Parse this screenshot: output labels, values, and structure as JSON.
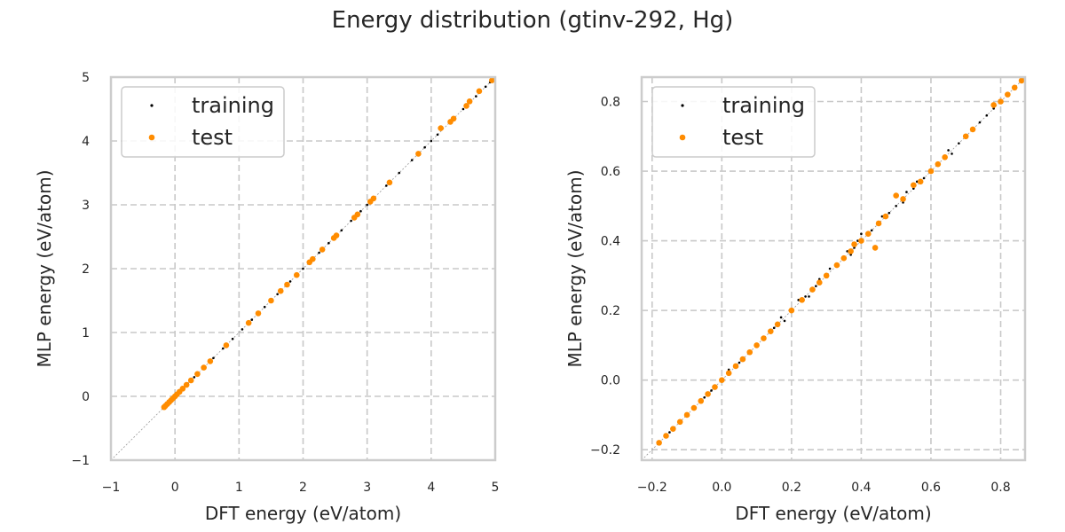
{
  "title": "Energy distribution (gtinv-292, Hg)",
  "colors": {
    "training": "#000000",
    "test": "#ff8c00",
    "grid": "#c8c8c8",
    "spine": "#cccccc",
    "diagonal": "#999999"
  },
  "chart_data": [
    {
      "type": "scatter",
      "title": "",
      "xlabel": "DFT energy (eV/atom)",
      "ylabel": "MLP energy (eV/atom)",
      "xlim": [
        -1,
        5
      ],
      "ylim": [
        -1,
        5
      ],
      "xticks": [
        -1,
        0,
        1,
        2,
        3,
        4,
        5
      ],
      "yticks": [
        -1,
        0,
        1,
        2,
        3,
        4,
        5
      ],
      "xtick_labels": [
        "−1",
        "0",
        "1",
        "2",
        "3",
        "4",
        "5"
      ],
      "ytick_labels": [
        "−1",
        "0",
        "1",
        "2",
        "3",
        "4",
        "5"
      ],
      "grid": true,
      "grid_style": "dashed",
      "legend": "top-left",
      "diagonal_reference": true,
      "series": [
        {
          "name": "training",
          "marker": "small dot",
          "x": [
            -0.18,
            -0.16,
            -0.14,
            -0.12,
            -0.1,
            -0.08,
            -0.05,
            -0.02,
            0.0,
            0.03,
            0.06,
            0.1,
            0.14,
            0.2,
            0.3,
            0.45,
            0.6,
            0.75,
            0.9,
            1.05,
            1.2,
            1.4,
            1.6,
            1.8,
            2.0,
            2.1,
            2.25,
            2.4,
            2.6,
            2.75,
            2.9,
            3.0,
            3.1,
            3.3,
            3.5,
            3.7,
            3.9,
            4.0,
            4.1,
            4.3,
            4.5,
            4.7,
            4.85,
            4.92
          ],
          "y": [
            -0.18,
            -0.16,
            -0.14,
            -0.12,
            -0.1,
            -0.08,
            -0.05,
            -0.02,
            0.0,
            0.03,
            0.06,
            0.1,
            0.14,
            0.2,
            0.3,
            0.45,
            0.6,
            0.75,
            0.9,
            1.05,
            1.2,
            1.4,
            1.6,
            1.8,
            2.0,
            2.1,
            2.25,
            2.4,
            2.6,
            2.75,
            2.9,
            3.0,
            3.1,
            3.3,
            3.5,
            3.7,
            3.9,
            4.0,
            4.1,
            4.3,
            4.5,
            4.7,
            4.85,
            4.92
          ]
        },
        {
          "name": "test",
          "marker": "dot",
          "x": [
            -0.17,
            -0.15,
            -0.12,
            -0.09,
            -0.06,
            -0.03,
            0.0,
            0.03,
            0.07,
            0.12,
            0.18,
            0.25,
            0.35,
            0.45,
            0.55,
            0.8,
            1.15,
            1.3,
            1.5,
            1.65,
            1.75,
            1.9,
            2.1,
            2.15,
            2.3,
            2.48,
            2.52,
            2.8,
            2.85,
            3.05,
            3.1,
            3.35,
            3.8,
            4.15,
            4.3,
            4.35,
            4.55,
            4.6,
            4.75,
            4.95
          ],
          "y": [
            -0.17,
            -0.15,
            -0.12,
            -0.09,
            -0.06,
            -0.03,
            0.0,
            0.03,
            0.07,
            0.12,
            0.18,
            0.25,
            0.35,
            0.45,
            0.55,
            0.8,
            1.15,
            1.3,
            1.5,
            1.65,
            1.75,
            1.9,
            2.1,
            2.15,
            2.3,
            2.48,
            2.52,
            2.8,
            2.85,
            3.05,
            3.1,
            3.35,
            3.8,
            4.2,
            4.3,
            4.35,
            4.55,
            4.62,
            4.78,
            4.95
          ]
        }
      ]
    },
    {
      "type": "scatter",
      "title": "",
      "xlabel": "DFT energy (eV/atom)",
      "ylabel": "MLP energy (eV/atom)",
      "xlim": [
        -0.23,
        0.87
      ],
      "ylim": [
        -0.23,
        0.87
      ],
      "xticks": [
        -0.2,
        0.0,
        0.2,
        0.4,
        0.6,
        0.8
      ],
      "yticks": [
        -0.2,
        0.0,
        0.2,
        0.4,
        0.6,
        0.8
      ],
      "xtick_labels": [
        "−0.2",
        "0.0",
        "0.2",
        "0.4",
        "0.6",
        "0.8"
      ],
      "ytick_labels": [
        "−0.2",
        "0.0",
        "0.2",
        "0.4",
        "0.6",
        "0.8"
      ],
      "grid": true,
      "grid_style": "dashed",
      "legend": "top-left",
      "diagonal_reference": true,
      "series": [
        {
          "name": "training",
          "marker": "small dot",
          "x": [
            -0.18,
            -0.15,
            -0.12,
            -0.1,
            -0.08,
            -0.05,
            -0.03,
            0.0,
            0.02,
            0.05,
            0.08,
            0.1,
            0.12,
            0.15,
            0.17,
            0.18,
            0.2,
            0.22,
            0.24,
            0.25,
            0.27,
            0.28,
            0.3,
            0.31,
            0.33,
            0.35,
            0.36,
            0.37,
            0.38,
            0.39,
            0.4,
            0.42,
            0.43,
            0.45,
            0.46,
            0.48,
            0.5,
            0.52,
            0.53,
            0.55,
            0.56,
            0.58,
            0.6,
            0.62,
            0.64,
            0.65,
            0.66,
            0.68,
            0.7,
            0.72,
            0.74,
            0.76,
            0.78,
            0.8,
            0.82,
            0.84,
            0.86
          ],
          "y": [
            -0.18,
            -0.15,
            -0.12,
            -0.1,
            -0.08,
            -0.05,
            -0.03,
            0.0,
            0.03,
            0.05,
            0.08,
            0.1,
            0.12,
            0.15,
            0.18,
            0.17,
            0.2,
            0.23,
            0.24,
            0.24,
            0.27,
            0.29,
            0.3,
            0.32,
            0.33,
            0.35,
            0.37,
            0.36,
            0.38,
            0.4,
            0.42,
            0.42,
            0.43,
            0.45,
            0.47,
            0.48,
            0.5,
            0.51,
            0.54,
            0.55,
            0.57,
            0.58,
            0.6,
            0.62,
            0.64,
            0.66,
            0.65,
            0.68,
            0.7,
            0.72,
            0.74,
            0.76,
            0.78,
            0.8,
            0.82,
            0.84,
            0.86
          ]
        },
        {
          "name": "test",
          "marker": "dot",
          "x": [
            -0.18,
            -0.16,
            -0.14,
            -0.12,
            -0.1,
            -0.08,
            -0.06,
            -0.04,
            -0.02,
            0.0,
            0.02,
            0.04,
            0.06,
            0.08,
            0.1,
            0.12,
            0.14,
            0.16,
            0.2,
            0.23,
            0.26,
            0.28,
            0.3,
            0.33,
            0.35,
            0.37,
            0.38,
            0.4,
            0.42,
            0.44,
            0.45,
            0.47,
            0.5,
            0.52,
            0.55,
            0.57,
            0.6,
            0.62,
            0.64,
            0.7,
            0.72,
            0.78,
            0.8,
            0.82,
            0.84,
            0.86
          ],
          "y": [
            -0.18,
            -0.16,
            -0.14,
            -0.12,
            -0.1,
            -0.08,
            -0.06,
            -0.04,
            -0.02,
            0.0,
            0.02,
            0.04,
            0.06,
            0.08,
            0.1,
            0.12,
            0.14,
            0.16,
            0.2,
            0.23,
            0.26,
            0.28,
            0.3,
            0.33,
            0.35,
            0.37,
            0.39,
            0.4,
            0.42,
            0.38,
            0.45,
            0.47,
            0.53,
            0.52,
            0.56,
            0.57,
            0.6,
            0.62,
            0.64,
            0.7,
            0.72,
            0.79,
            0.8,
            0.82,
            0.84,
            0.86
          ]
        }
      ]
    }
  ]
}
